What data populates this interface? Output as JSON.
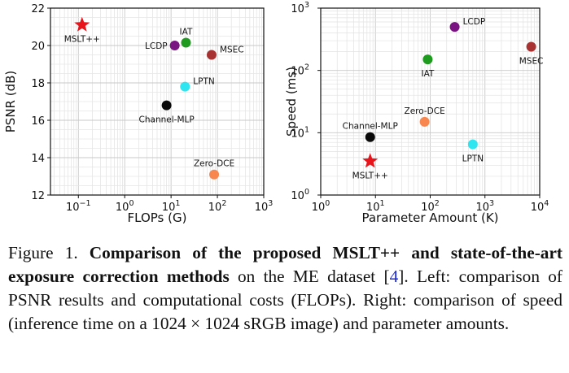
{
  "chart_data": [
    {
      "type": "scatter",
      "title": "",
      "xlabel": "FLOPs (G)",
      "ylabel": "PSNR (dB)",
      "xscale": "log",
      "xlim": [
        0.025,
        1000
      ],
      "ylim": [
        12,
        22
      ],
      "xticks": [
        {
          "value": 0.1,
          "base": "10",
          "exp": "−1"
        },
        {
          "value": 1,
          "base": "10",
          "exp": "0"
        },
        {
          "value": 10,
          "base": "10",
          "exp": "1"
        },
        {
          "value": 100,
          "base": "10",
          "exp": "2"
        },
        {
          "value": 1000,
          "base": "10",
          "exp": "3"
        }
      ],
      "yticks": [
        {
          "value": 12,
          "label": "12"
        },
        {
          "value": 14,
          "label": "14"
        },
        {
          "value": 16,
          "label": "16"
        },
        {
          "value": 18,
          "label": "18"
        },
        {
          "value": 20,
          "label": "20"
        },
        {
          "value": 22,
          "label": "22"
        }
      ],
      "grid": true,
      "points": [
        {
          "name": "MSLT++",
          "x": 0.12,
          "y": 21.1,
          "color": "#e8141c",
          "marker": "star",
          "label_pos": "below"
        },
        {
          "name": "LCDP",
          "x": 12,
          "y": 20.0,
          "color": "#7a1482",
          "marker": "circle",
          "label_pos": "left"
        },
        {
          "name": "IAT",
          "x": 21,
          "y": 20.15,
          "color": "#1e9a1e",
          "marker": "circle",
          "label_pos": "above"
        },
        {
          "name": "MSEC",
          "x": 75,
          "y": 19.5,
          "color": "#a83232",
          "marker": "circle",
          "label_pos": "right"
        },
        {
          "name": "LPTN",
          "x": 20,
          "y": 17.8,
          "color": "#2fe6f0",
          "marker": "circle",
          "label_pos": "right"
        },
        {
          "name": "Channel-MLP",
          "x": 8,
          "y": 16.8,
          "color": "#0a0a0a",
          "marker": "circle",
          "label_pos": "below"
        },
        {
          "name": "Zero-DCE",
          "x": 85,
          "y": 13.1,
          "color": "#f7874f",
          "marker": "circle",
          "label_pos": "above"
        }
      ]
    },
    {
      "type": "scatter",
      "title": "",
      "xlabel": "Parameter Amount (K)",
      "ylabel": "Speed (ms)",
      "xscale": "log",
      "yscale": "log",
      "xlim": [
        1,
        10000
      ],
      "ylim": [
        1,
        1000
      ],
      "xticks": [
        {
          "value": 1,
          "base": "10",
          "exp": "0"
        },
        {
          "value": 10,
          "base": "10",
          "exp": "1"
        },
        {
          "value": 100,
          "base": "10",
          "exp": "2"
        },
        {
          "value": 1000,
          "base": "10",
          "exp": "3"
        },
        {
          "value": 10000,
          "base": "10",
          "exp": "4"
        }
      ],
      "yticks": [
        {
          "value": 1,
          "base": "10",
          "exp": "0"
        },
        {
          "value": 10,
          "base": "10",
          "exp": "1"
        },
        {
          "value": 100,
          "base": "10",
          "exp": "2"
        },
        {
          "value": 1000,
          "base": "10",
          "exp": "3"
        }
      ],
      "grid": true,
      "points": [
        {
          "name": "LCDP",
          "x": 280,
          "y": 500,
          "color": "#7a1482",
          "marker": "circle",
          "label_pos": "right"
        },
        {
          "name": "MSEC",
          "x": 7000,
          "y": 240,
          "color": "#a83232",
          "marker": "circle",
          "label_pos": "below"
        },
        {
          "name": "IAT",
          "x": 90,
          "y": 150,
          "color": "#1e9a1e",
          "marker": "circle",
          "label_pos": "below"
        },
        {
          "name": "Zero-DCE",
          "x": 79,
          "y": 15,
          "color": "#f7874f",
          "marker": "circle",
          "label_pos": "above"
        },
        {
          "name": "Channel-MLP",
          "x": 8,
          "y": 8.5,
          "color": "#0a0a0a",
          "marker": "circle",
          "label_pos": "above"
        },
        {
          "name": "LPTN",
          "x": 600,
          "y": 6.5,
          "color": "#2fe6f0",
          "marker": "circle",
          "label_pos": "below"
        },
        {
          "name": "MSLT++",
          "x": 8,
          "y": 3.5,
          "color": "#e8141c",
          "marker": "star",
          "label_pos": "below"
        }
      ]
    }
  ],
  "caption": {
    "prefix": "Figure 1.",
    "bold": "Comparison of the proposed MSLT++ and state-of-the-art exposure correction methods",
    "middle": " on the ME dataset [",
    "ref": "4",
    "after_ref": "].",
    "left_label": "Left:",
    "left_text": " comparison of PSNR results and computational costs (FLOPs).",
    "right_label": "Right:",
    "right_text": " comparison of speed (inference time on a 1024 × 1024 sRGB image) and parameter amounts."
  }
}
